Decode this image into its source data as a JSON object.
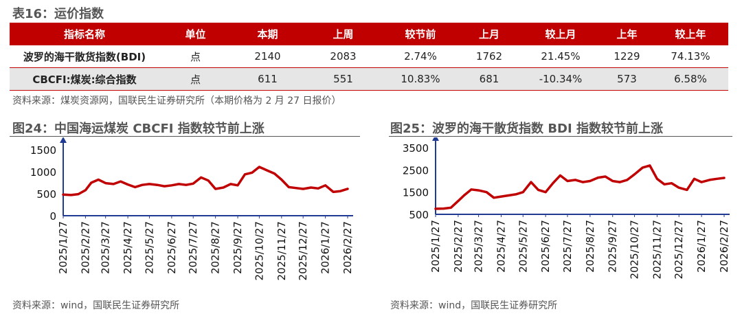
{
  "table16": {
    "title": "表16：运价指数",
    "headers": [
      "指标名称",
      "单位",
      "本期",
      "上周",
      "较节前",
      "上月",
      "较上月",
      "上年",
      "较上年"
    ],
    "rows": [
      [
        "波罗的海干散货指数(BDI)",
        "点",
        "2140",
        "2083",
        "2.74%",
        "1762",
        "21.45%",
        "1229",
        "74.13%"
      ],
      [
        "CBCFI:煤炭:综合指数",
        "点",
        "611",
        "551",
        "10.83%",
        "681",
        "-10.34%",
        "573",
        "6.58%"
      ]
    ],
    "source": "资料来源：煤炭资源网，国联民生证券研究所（本期价格为 2 月 27 日报价）"
  },
  "chart24": {
    "title": "图24：中国海运煤炭 CBCFI 指数较节前上涨",
    "source": "资料来源：wind，国联民生证券研究所"
  },
  "chart25": {
    "title": "图25：波罗的海干散货指数 BDI 指数较节前上涨",
    "source": "资料来源：wind，国联民生证券研究所"
  },
  "chart_data": [
    {
      "type": "line",
      "title": "图24：中国海运煤炭 CBCFI 指数较节前上涨",
      "line_color": "#c00000",
      "ylim": [
        0,
        1500
      ],
      "yticks": [
        0,
        500,
        1000,
        1500
      ],
      "x_ticks": [
        "2025/1/27",
        "2025/2/27",
        "2025/3/27",
        "2025/4/27",
        "2025/5/27",
        "2025/6/27",
        "2025/7/27",
        "2025/8/27",
        "2025/9/27",
        "2025/10/27",
        "2025/11/27",
        "2025/12/27",
        "2026/1/27",
        "2026/2/27"
      ],
      "x": [
        "2025/1/27",
        "2025/2/7",
        "2025/2/17",
        "2025/2/27",
        "2025/3/7",
        "2025/3/17",
        "2025/3/27",
        "2025/4/7",
        "2025/4/17",
        "2025/4/27",
        "2025/5/7",
        "2025/5/17",
        "2025/5/27",
        "2025/6/7",
        "2025/6/17",
        "2025/6/27",
        "2025/7/7",
        "2025/7/17",
        "2025/7/27",
        "2025/8/7",
        "2025/8/17",
        "2025/8/27",
        "2025/9/7",
        "2025/9/17",
        "2025/9/27",
        "2025/10/7",
        "2025/10/17",
        "2025/10/27",
        "2025/11/7",
        "2025/11/17",
        "2025/11/27",
        "2025/12/7",
        "2025/12/17",
        "2025/12/27",
        "2026/1/7",
        "2026/1/17",
        "2026/1/27",
        "2026/2/7",
        "2026/2/17",
        "2026/2/27"
      ],
      "values": [
        480,
        470,
        490,
        580,
        750,
        820,
        740,
        720,
        780,
        710,
        650,
        700,
        720,
        700,
        670,
        690,
        720,
        700,
        730,
        870,
        800,
        610,
        640,
        720,
        690,
        940,
        980,
        1110,
        1030,
        960,
        820,
        650,
        630,
        610,
        640,
        620,
        690,
        540,
        560,
        611
      ]
    },
    {
      "type": "line",
      "title": "图25：波罗的海干散货指数 BDI 指数较节前上涨",
      "line_color": "#c00000",
      "ylim": [
        500,
        3500
      ],
      "yticks": [
        500,
        1500,
        2500,
        3500
      ],
      "x_ticks": [
        "2025/1/27",
        "2025/2/27",
        "2025/3/27",
        "2025/4/27",
        "2025/5/27",
        "2025/6/27",
        "2025/7/27",
        "2025/8/27",
        "2025/9/27",
        "2025/10/27",
        "2025/11/27",
        "2025/12/27",
        "2026/1/27",
        "2026/2/27"
      ],
      "x": [
        "2025/1/27",
        "2025/2/7",
        "2025/2/17",
        "2025/2/27",
        "2025/3/7",
        "2025/3/17",
        "2025/3/27",
        "2025/4/7",
        "2025/4/17",
        "2025/4/27",
        "2025/5/7",
        "2025/5/17",
        "2025/5/27",
        "2025/6/7",
        "2025/6/17",
        "2025/6/27",
        "2025/7/7",
        "2025/7/17",
        "2025/7/27",
        "2025/8/7",
        "2025/8/17",
        "2025/8/27",
        "2025/9/7",
        "2025/9/17",
        "2025/9/27",
        "2025/10/7",
        "2025/10/17",
        "2025/10/27",
        "2025/11/7",
        "2025/11/17",
        "2025/11/27",
        "2025/12/7",
        "2025/12/17",
        "2025/12/27",
        "2026/1/7",
        "2026/1/17",
        "2026/1/27",
        "2026/2/7",
        "2026/2/17",
        "2026/2/27"
      ],
      "values": [
        750,
        760,
        800,
        1100,
        1350,
        1620,
        1580,
        1500,
        1250,
        1300,
        1350,
        1400,
        1500,
        1950,
        1600,
        1500,
        1900,
        2250,
        2000,
        2050,
        1950,
        2000,
        2150,
        2200,
        2000,
        1950,
        2050,
        2300,
        2600,
        2700,
        2100,
        1850,
        1900,
        1700,
        1600,
        2100,
        1950,
        2050,
        2100,
        2140
      ]
    }
  ]
}
